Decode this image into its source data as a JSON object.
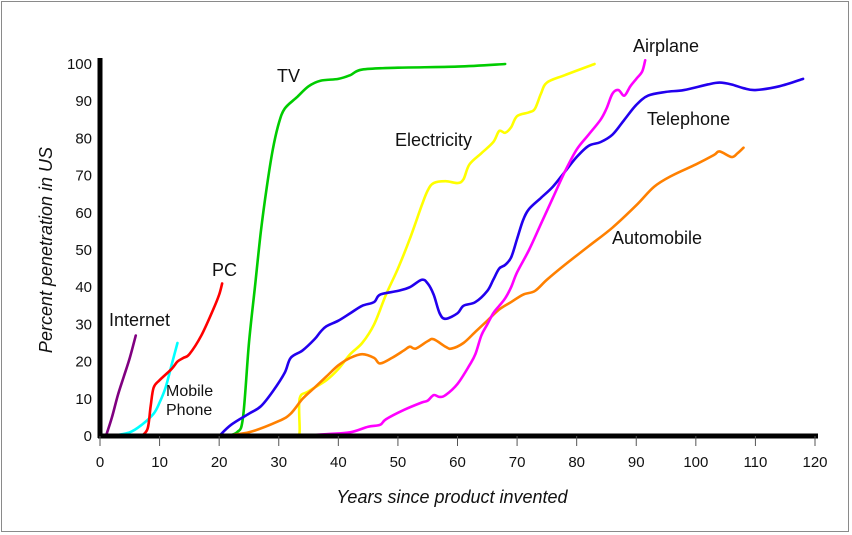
{
  "chart_data": {
    "type": "line",
    "title": "",
    "xlabel": "Years since product invented",
    "ylabel": "Percent penetration in US",
    "xlim": [
      0,
      120
    ],
    "ylim": [
      0,
      100
    ],
    "xticks": [
      0,
      10,
      20,
      30,
      40,
      50,
      60,
      70,
      80,
      90,
      100,
      110,
      120
    ],
    "yticks": [
      0,
      10,
      20,
      30,
      40,
      50,
      60,
      70,
      80,
      90,
      100
    ],
    "grid": false,
    "series": [
      {
        "name": "Internet",
        "color": "#800080",
        "points": [
          [
            1,
            0
          ],
          [
            2,
            5
          ],
          [
            3,
            11
          ],
          [
            4,
            16
          ],
          [
            5,
            21
          ],
          [
            6,
            27
          ]
        ]
      },
      {
        "name": "Mobile Phone",
        "color": "#00ffff",
        "points": [
          [
            2,
            0
          ],
          [
            5,
            1
          ],
          [
            7,
            3
          ],
          [
            9,
            6
          ],
          [
            10,
            9
          ],
          [
            11,
            13
          ],
          [
            12,
            19
          ],
          [
            13,
            25
          ]
        ]
      },
      {
        "name": "PC",
        "color": "#ff0000",
        "points": [
          [
            7,
            0
          ],
          [
            8,
            2
          ],
          [
            8.5,
            8
          ],
          [
            9,
            13
          ],
          [
            10,
            15
          ],
          [
            12,
            18
          ],
          [
            13,
            20
          ],
          [
            14,
            21
          ],
          [
            15,
            22
          ],
          [
            17,
            27
          ],
          [
            19,
            34
          ],
          [
            20,
            38
          ],
          [
            20.5,
            41
          ]
        ]
      },
      {
        "name": "TV",
        "color": "#00cc00",
        "points": [
          [
            21,
            0
          ],
          [
            23,
            1
          ],
          [
            24,
            5
          ],
          [
            25,
            25
          ],
          [
            26,
            40
          ],
          [
            27,
            55
          ],
          [
            28,
            67
          ],
          [
            29,
            77
          ],
          [
            30,
            84
          ],
          [
            31,
            88
          ],
          [
            33,
            91
          ],
          [
            35,
            94
          ],
          [
            37,
            95.5
          ],
          [
            40,
            96
          ],
          [
            42,
            97
          ],
          [
            44,
            98.5
          ],
          [
            50,
            99
          ],
          [
            60,
            99.3
          ],
          [
            68,
            100
          ]
        ]
      },
      {
        "name": "Electricity",
        "color": "#ffff00",
        "points": [
          [
            33,
            0
          ],
          [
            33.5,
            1
          ],
          [
            33.5,
            10
          ],
          [
            35,
            12
          ],
          [
            38,
            15
          ],
          [
            40,
            18
          ],
          [
            42,
            22
          ],
          [
            44,
            25
          ],
          [
            46,
            30
          ],
          [
            48,
            38
          ],
          [
            50,
            45
          ],
          [
            52,
            53
          ],
          [
            54,
            62
          ],
          [
            55,
            66
          ],
          [
            56,
            68
          ],
          [
            58,
            68.5
          ],
          [
            60,
            68
          ],
          [
            61,
            69
          ],
          [
            62,
            73
          ],
          [
            64,
            76
          ],
          [
            66,
            79
          ],
          [
            67,
            82
          ],
          [
            68,
            81.5
          ],
          [
            69,
            83
          ],
          [
            70,
            86
          ],
          [
            72,
            87
          ],
          [
            73,
            88
          ],
          [
            74,
            92
          ],
          [
            75,
            95
          ],
          [
            78,
            97
          ],
          [
            83,
            100
          ]
        ]
      },
      {
        "name": "Telephone",
        "color": "#2200ee",
        "points": [
          [
            20,
            0
          ],
          [
            22,
            3
          ],
          [
            25,
            6
          ],
          [
            27,
            8
          ],
          [
            29,
            12
          ],
          [
            31,
            17
          ],
          [
            32,
            21
          ],
          [
            34,
            23
          ],
          [
            36,
            26
          ],
          [
            37,
            28
          ],
          [
            38,
            29.5
          ],
          [
            40,
            31
          ],
          [
            42,
            33
          ],
          [
            44,
            35
          ],
          [
            46,
            36
          ],
          [
            47,
            38
          ],
          [
            50,
            39
          ],
          [
            52,
            40
          ],
          [
            54,
            42
          ],
          [
            55,
            41
          ],
          [
            56,
            38
          ],
          [
            57,
            33
          ],
          [
            58,
            31.5
          ],
          [
            60,
            33
          ],
          [
            61,
            35
          ],
          [
            63,
            36
          ],
          [
            65,
            39
          ],
          [
            66,
            42
          ],
          [
            67,
            45
          ],
          [
            68,
            46
          ],
          [
            69,
            48
          ],
          [
            70,
            53
          ],
          [
            71,
            58
          ],
          [
            72,
            61
          ],
          [
            74,
            64
          ],
          [
            76,
            67
          ],
          [
            78,
            71
          ],
          [
            80,
            75
          ],
          [
            82,
            78
          ],
          [
            84,
            79
          ],
          [
            86,
            81
          ],
          [
            88,
            85
          ],
          [
            90,
            89
          ],
          [
            92,
            91.5
          ],
          [
            95,
            92.5
          ],
          [
            98,
            93
          ],
          [
            102,
            94.5
          ],
          [
            104,
            95
          ],
          [
            106,
            94.5
          ],
          [
            108,
            93.5
          ],
          [
            110,
            93
          ],
          [
            114,
            94
          ],
          [
            118,
            96
          ]
        ]
      },
      {
        "name": "Automobile",
        "color": "#ff8000",
        "points": [
          [
            20,
            0
          ],
          [
            25,
            1
          ],
          [
            30,
            4
          ],
          [
            32,
            6
          ],
          [
            34,
            10
          ],
          [
            36,
            13
          ],
          [
            38,
            16
          ],
          [
            40,
            19
          ],
          [
            42,
            21
          ],
          [
            44,
            22
          ],
          [
            46,
            21
          ],
          [
            47,
            19.5
          ],
          [
            49,
            21
          ],
          [
            51,
            23
          ],
          [
            52,
            24
          ],
          [
            53,
            23.5
          ],
          [
            55,
            25.5
          ],
          [
            56,
            26
          ],
          [
            58,
            24
          ],
          [
            59,
            23.5
          ],
          [
            61,
            25
          ],
          [
            63,
            28
          ],
          [
            65,
            31
          ],
          [
            67,
            34
          ],
          [
            69,
            36
          ],
          [
            71,
            38
          ],
          [
            73,
            39
          ],
          [
            75,
            42
          ],
          [
            78,
            46
          ],
          [
            82,
            51
          ],
          [
            86,
            56
          ],
          [
            90,
            62
          ],
          [
            93,
            67
          ],
          [
            96,
            70
          ],
          [
            100,
            73
          ],
          [
            103,
            75.5
          ],
          [
            104,
            76.5
          ],
          [
            106,
            75
          ],
          [
            107,
            76
          ],
          [
            108,
            77.5
          ]
        ]
      },
      {
        "name": "Airplane",
        "color": "#ff00ff",
        "points": [
          [
            33,
            0
          ],
          [
            38,
            0.5
          ],
          [
            42,
            1
          ],
          [
            45,
            2.5
          ],
          [
            47,
            3
          ],
          [
            48,
            4.5
          ],
          [
            51,
            7
          ],
          [
            54,
            9
          ],
          [
            55,
            9.5
          ],
          [
            56,
            11
          ],
          [
            57,
            10.5
          ],
          [
            58,
            11
          ],
          [
            60,
            14
          ],
          [
            62,
            19
          ],
          [
            63,
            22
          ],
          [
            64,
            27
          ],
          [
            65,
            30
          ],
          [
            66,
            33
          ],
          [
            67,
            35
          ],
          [
            68,
            37
          ],
          [
            69,
            40
          ],
          [
            70,
            44
          ],
          [
            72,
            50
          ],
          [
            74,
            57
          ],
          [
            76,
            64
          ],
          [
            78,
            71
          ],
          [
            80,
            77
          ],
          [
            82,
            81
          ],
          [
            84,
            85
          ],
          [
            85,
            88
          ],
          [
            86,
            92
          ],
          [
            87,
            93
          ],
          [
            88,
            91.5
          ],
          [
            89,
            94
          ],
          [
            90,
            96
          ],
          [
            91,
            98
          ],
          [
            91.5,
            101
          ]
        ]
      }
    ],
    "annotations": [
      {
        "text": "Internet",
        "series": "Internet"
      },
      {
        "text": "Mobile",
        "series": "Mobile Phone"
      },
      {
        "text": "Phone",
        "series": "Mobile Phone"
      },
      {
        "text": "PC",
        "series": "PC"
      },
      {
        "text": "TV",
        "series": "TV"
      },
      {
        "text": "Electricity",
        "series": "Electricity"
      },
      {
        "text": "Airplane",
        "series": "Airplane"
      },
      {
        "text": "Telephone",
        "series": "Telephone"
      },
      {
        "text": "Automobile",
        "series": "Automobile"
      }
    ]
  }
}
